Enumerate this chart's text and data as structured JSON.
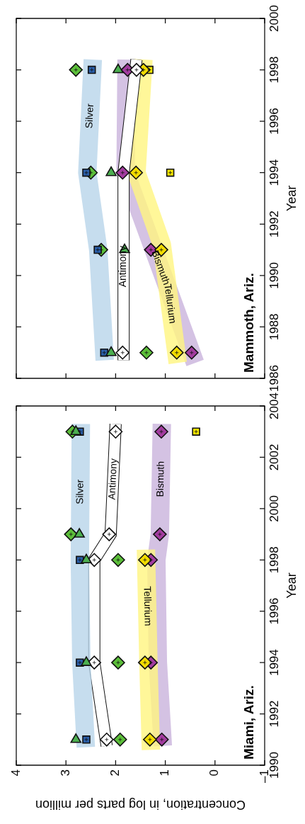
{
  "chart_data": [
    {
      "type": "scatter",
      "orientation": "horizontal",
      "title": "Mammoth, Ariz.",
      "ylabel": "Year",
      "tick_labels": "y",
      "xlim": [
        4,
        -1
      ],
      "xticks": [
        4,
        3,
        2,
        1,
        0,
        -1
      ],
      "ylim": [
        1986,
        2000
      ],
      "yticks": [
        1986,
        1988,
        1990,
        1992,
        1994,
        1996,
        1998,
        2000
      ],
      "x": [
        1987,
        1991,
        1994,
        1998
      ],
      "series": [
        {
          "type": "line",
          "name": "Silver",
          "color": "#b8d5ea",
          "x": [
            1986.7,
            1991,
            1994,
            1998.4
          ],
          "values": [
            2.22,
            2.35,
            2.57,
            2.46
          ]
        },
        {
          "type": "line",
          "name": "Antimony",
          "color": "#ffffff",
          "x": [
            1986.7,
            1994,
            1998.4
          ],
          "values": [
            1.84,
            1.84,
            1.58
          ]
        },
        {
          "type": "line",
          "name": "Tellurium",
          "color": "#fff580",
          "x": [
            1986.6,
            1991.2,
            1994,
            1998.4
          ],
          "values": [
            0.75,
            1.07,
            1.58,
            1.44
          ]
        },
        {
          "type": "line",
          "name": "Bismuth",
          "color": "#c9b3dc",
          "x": [
            1986.6,
            1994,
            1998.4
          ],
          "values": [
            0.4,
            1.8,
            1.78
          ]
        },
        {
          "marker": "square",
          "color": "#2a5ea8",
          "values": [
            2.23,
            2.36,
            2.59,
            2.48
          ]
        },
        {
          "marker": "triangle",
          "color": "#4caf50",
          "values": [
            2.09,
            1.82,
            2.09,
            1.95
          ]
        },
        {
          "marker": "diamond",
          "color": "#ffffff",
          "values": [
            1.86,
            null,
            null,
            1.58
          ]
        },
        {
          "marker": "diamond",
          "color": "#5cbf3a",
          "values": [
            1.38,
            2.29,
            2.5,
            2.8
          ]
        },
        {
          "marker": "diamond",
          "color": "#f2dc00",
          "values": [
            0.77,
            1.08,
            1.59,
            1.44
          ]
        },
        {
          "marker": "diamond",
          "color": "#a33ca0",
          "values": [
            0.47,
            1.29,
            1.86,
            1.76
          ]
        },
        {
          "marker": "square",
          "color": "#f5e600",
          "values": [
            null,
            null,
            0.9,
            1.32
          ]
        }
      ]
    },
    {
      "type": "scatter",
      "orientation": "horizontal",
      "title": "Miami, Ariz.",
      "xlabel": "Concentration, in log parts per million",
      "ylabel": "Year",
      "xlim": [
        4,
        -1
      ],
      "xticks": [
        4,
        3,
        2,
        1,
        0,
        {
          "value": -1,
          "label": "–1"
        }
      ],
      "ylim": [
        1990,
        2004
      ],
      "yticks": [
        1990,
        1992,
        1994,
        1996,
        1998,
        2000,
        2002,
        2004
      ],
      "x": [
        1991,
        1994,
        1998,
        1999,
        2003
      ],
      "series": [
        {
          "type": "line",
          "name": "Silver",
          "color": "#b8d5ea",
          "x": [
            1990.7,
            1994,
            1998,
            2003.3
          ],
          "values": [
            2.6,
            2.69,
            2.72,
            2.7
          ]
        },
        {
          "type": "line",
          "name": "Antimony",
          "color": "#ffffff",
          "x": [
            1990.75,
            1994,
            1998,
            1999,
            2003.3
          ],
          "values": [
            2.18,
            2.43,
            2.43,
            2.1,
            2.0
          ]
        },
        {
          "type": "line",
          "name": "Tellurium",
          "color": "#fff580",
          "x": [
            1990.6,
            1994,
            1998.4
          ],
          "values": [
            1.29,
            1.34,
            1.39
          ]
        },
        {
          "type": "line",
          "name": "Bismuth",
          "color": "#c9b3dc",
          "x": [
            1990.75,
            1994,
            1998,
            1999,
            2003.3
          ],
          "values": [
            1.05,
            1.15,
            1.18,
            1.11,
            1.07
          ]
        },
        {
          "marker": "square",
          "color": "#2a5ea8",
          "values": [
            2.59,
            2.72,
            2.72,
            null,
            2.72
          ]
        },
        {
          "marker": "triangle",
          "color": "#4caf50",
          "values": [
            2.8,
            2.59,
            2.59,
            2.73,
            2.8
          ]
        },
        {
          "marker": "diamond",
          "color": "#ffffff",
          "values": [
            2.18,
            2.43,
            2.43,
            2.13,
            2.0
          ]
        },
        {
          "marker": "diamond",
          "color": "#5cbf3a",
          "values": [
            1.91,
            1.95,
            1.95,
            2.9,
            2.87
          ]
        },
        {
          "marker": "diamond",
          "color": "#f2dc00",
          "values": [
            1.31,
            1.41,
            1.41,
            null,
            null
          ]
        },
        {
          "marker": "diamond",
          "color": "#a33ca0",
          "values": [
            1.07,
            1.29,
            1.29,
            1.11,
            1.08
          ]
        },
        {
          "marker": "square",
          "color": "#f5e600",
          "values": [
            null,
            null,
            null,
            null,
            0.38
          ]
        }
      ]
    }
  ]
}
